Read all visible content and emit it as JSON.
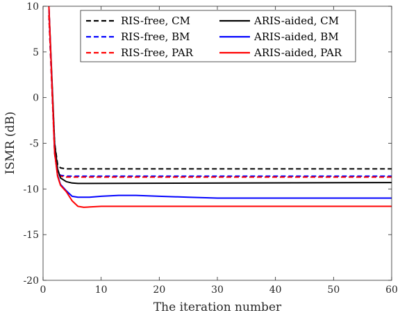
{
  "chart_data": {
    "type": "line",
    "xlabel": "The iteration number",
    "ylabel": "ISMR (dB)",
    "xlim": [
      0,
      60
    ],
    "ylim": [
      -20,
      10
    ],
    "xticks": [
      0,
      10,
      20,
      30,
      40,
      50,
      60
    ],
    "yticks": [
      10,
      5,
      0,
      -5,
      -10,
      -15,
      -20
    ],
    "grid": false,
    "legend_placement": "top-right",
    "series": [
      {
        "name": "RIS-free, CM",
        "color": "#000000",
        "dash": "dashed",
        "x": [
          1,
          2,
          2.5,
          3,
          4,
          5,
          60
        ],
        "y": [
          9,
          -5,
          -7.3,
          -7.7,
          -7.8,
          -7.8,
          -7.8
        ]
      },
      {
        "name": "RIS-free, BM",
        "color": "#0000ff",
        "dash": "dashed",
        "x": [
          1,
          2,
          2.5,
          3,
          4,
          5,
          60
        ],
        "y": [
          9,
          -6,
          -8.2,
          -8.5,
          -8.6,
          -8.6,
          -8.6
        ]
      },
      {
        "name": "RIS-free, PAR",
        "color": "#ff0000",
        "dash": "dashed",
        "x": [
          1,
          2,
          2.5,
          3,
          4,
          5,
          60
        ],
        "y": [
          9,
          -6.2,
          -8.3,
          -8.6,
          -8.7,
          -8.7,
          -8.7
        ]
      },
      {
        "name": "ARIS-aided, CM",
        "color": "#000000",
        "dash": "solid",
        "x": [
          1,
          2,
          2.5,
          3,
          4,
          5,
          6,
          60
        ],
        "y": [
          10,
          -5,
          -7.8,
          -8.8,
          -9.2,
          -9.35,
          -9.4,
          -9.3
        ]
      },
      {
        "name": "ARIS-aided, BM",
        "color": "#0000ff",
        "dash": "solid",
        "x": [
          1,
          2,
          2.5,
          3,
          4,
          5,
          6,
          8,
          10,
          13,
          16,
          20,
          25,
          30,
          40,
          50,
          60
        ],
        "y": [
          10,
          -6,
          -8.5,
          -9.5,
          -10.2,
          -10.8,
          -10.9,
          -10.9,
          -10.8,
          -10.7,
          -10.7,
          -10.8,
          -10.9,
          -11.0,
          -11.0,
          -11.0,
          -11.0
        ]
      },
      {
        "name": "ARIS-aided, PAR",
        "color": "#ff0000",
        "dash": "solid",
        "x": [
          1,
          2,
          2.5,
          3,
          4,
          5,
          6,
          7,
          10,
          15,
          20,
          30,
          40,
          50,
          60
        ],
        "y": [
          10,
          -6,
          -8.6,
          -9.6,
          -10.3,
          -11.3,
          -11.9,
          -12.0,
          -11.9,
          -11.9,
          -11.9,
          -11.9,
          -11.9,
          -11.9,
          -11.9
        ]
      }
    ]
  }
}
